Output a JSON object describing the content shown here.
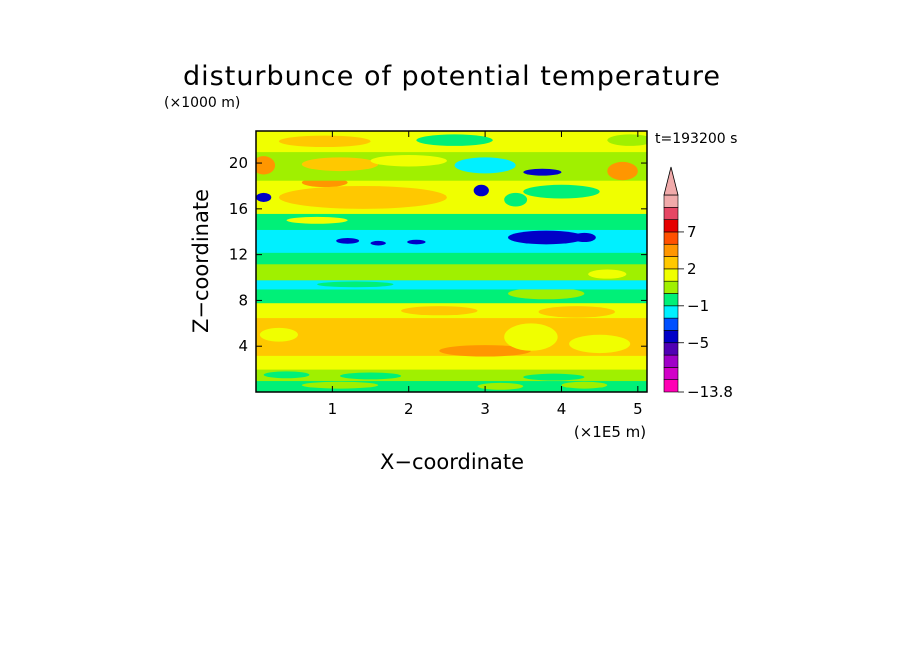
{
  "chart_data": {
    "type": "heatmap",
    "title": "disturbunce of potential temperature",
    "xlabel": "X−coordinate",
    "ylabel": "Z−coordinate",
    "x_unit": "(×1E5 m)",
    "y_unit": "(×1000 m)",
    "time_label": "t=193200 s",
    "xlim": [
      0,
      5.12
    ],
    "ylim": [
      0,
      22.8
    ],
    "x_ticks": [
      "1",
      "2",
      "3",
      "4",
      "5"
    ],
    "x_tick_values": [
      1,
      2,
      3,
      4,
      5
    ],
    "y_ticks": [
      "4",
      "8",
      "12",
      "16",
      "20"
    ],
    "y_tick_values": [
      4,
      8,
      12,
      16,
      20
    ],
    "colorbar": {
      "labels": [
        "7",
        "2",
        "−1",
        "−5",
        "−13.8"
      ],
      "label_values": [
        7,
        2,
        -1,
        -5,
        -13.8
      ],
      "min": -13.8,
      "colors": [
        "#ff00b4",
        "#d200c8",
        "#a000c8",
        "#5000b4",
        "#0000c8",
        "#0050ff",
        "#00f0ff",
        "#00f078",
        "#a0f000",
        "#f0ff00",
        "#ffc800",
        "#ff9600",
        "#ff5000",
        "#e60000",
        "#e64664",
        "#f0aaaa"
      ]
    },
    "bands": [
      {
        "z": [
          0,
          1.0
        ],
        "level": 7,
        "blobs": [
          {
            "x": 1.1,
            "z": 0.6,
            "rx": 0.5,
            "rz": 0.3,
            "level": 8
          },
          {
            "x": 3.2,
            "z": 0.5,
            "rx": 0.3,
            "rz": 0.3,
            "level": 8
          },
          {
            "x": 4.3,
            "z": 0.6,
            "rx": 0.3,
            "rz": 0.3,
            "level": 8
          }
        ]
      },
      {
        "z": [
          1.0,
          2.0
        ],
        "level": 8,
        "blobs": [
          {
            "x": 0.4,
            "z": 1.5,
            "rx": 0.3,
            "rz": 0.3,
            "level": 7
          },
          {
            "x": 1.5,
            "z": 1.4,
            "rx": 0.4,
            "rz": 0.3,
            "level": 7
          },
          {
            "x": 3.9,
            "z": 1.3,
            "rx": 0.4,
            "rz": 0.3,
            "level": 7
          }
        ]
      },
      {
        "z": [
          2.0,
          3.2
        ],
        "level": 9,
        "blobs": []
      },
      {
        "z": [
          3.2,
          6.5
        ],
        "level": 10,
        "blobs": [
          {
            "x": 0.3,
            "z": 5.0,
            "rx": 0.25,
            "rz": 0.6,
            "level": 9
          },
          {
            "x": 3.0,
            "z": 3.6,
            "rx": 0.6,
            "rz": 0.5,
            "level": 11
          },
          {
            "x": 3.6,
            "z": 4.8,
            "rx": 0.35,
            "rz": 1.2,
            "level": 9
          },
          {
            "x": 4.5,
            "z": 4.2,
            "rx": 0.4,
            "rz": 0.8,
            "level": 9
          }
        ]
      },
      {
        "z": [
          6.5,
          7.8
        ],
        "level": 9,
        "blobs": [
          {
            "x": 2.4,
            "z": 7.1,
            "rx": 0.5,
            "rz": 0.4,
            "level": 10
          },
          {
            "x": 4.2,
            "z": 7.0,
            "rx": 0.5,
            "rz": 0.5,
            "level": 10
          }
        ]
      },
      {
        "z": [
          7.8,
          9.0
        ],
        "level": 7,
        "blobs": [
          {
            "x": 3.8,
            "z": 8.6,
            "rx": 0.5,
            "rz": 0.5,
            "level": 8
          }
        ]
      },
      {
        "z": [
          9.0,
          9.8
        ],
        "level": 6,
        "blobs": [
          {
            "x": 1.3,
            "z": 9.4,
            "rx": 0.5,
            "rz": 0.25,
            "level": 7
          }
        ]
      },
      {
        "z": [
          9.8,
          11.2
        ],
        "level": 8,
        "blobs": [
          {
            "x": 4.6,
            "z": 10.3,
            "rx": 0.25,
            "rz": 0.4,
            "level": 9
          }
        ]
      },
      {
        "z": [
          11.2,
          12.2
        ],
        "level": 7,
        "blobs": []
      },
      {
        "z": [
          12.2,
          14.2
        ],
        "level": 6,
        "blobs": [
          {
            "x": 1.2,
            "z": 13.2,
            "rx": 0.15,
            "rz": 0.25,
            "level": 4
          },
          {
            "x": 1.6,
            "z": 13.0,
            "rx": 0.1,
            "rz": 0.2,
            "level": 4
          },
          {
            "x": 2.1,
            "z": 13.1,
            "rx": 0.12,
            "rz": 0.2,
            "level": 4
          },
          {
            "x": 3.8,
            "z": 13.5,
            "rx": 0.5,
            "rz": 0.6,
            "level": 4
          },
          {
            "x": 4.3,
            "z": 13.5,
            "rx": 0.15,
            "rz": 0.4,
            "level": 4
          }
        ]
      },
      {
        "z": [
          14.2,
          15.6
        ],
        "level": 7,
        "blobs": [
          {
            "x": 0.8,
            "z": 15.0,
            "rx": 0.4,
            "rz": 0.3,
            "level": 9
          }
        ]
      },
      {
        "z": [
          15.6,
          18.5
        ],
        "level": 9,
        "blobs": [
          {
            "x": 1.4,
            "z": 17.0,
            "rx": 1.1,
            "rz": 1.0,
            "level": 10
          },
          {
            "x": 0.9,
            "z": 18.3,
            "rx": 0.3,
            "rz": 0.4,
            "level": 11
          },
          {
            "x": 0.1,
            "z": 17.0,
            "rx": 0.1,
            "rz": 0.4,
            "level": 4
          },
          {
            "x": 2.95,
            "z": 17.6,
            "rx": 0.1,
            "rz": 0.5,
            "level": 4
          },
          {
            "x": 3.4,
            "z": 16.8,
            "rx": 0.15,
            "rz": 0.6,
            "level": 7
          },
          {
            "x": 4.0,
            "z": 17.5,
            "rx": 0.5,
            "rz": 0.6,
            "level": 7
          }
        ]
      },
      {
        "z": [
          18.5,
          21.0
        ],
        "level": 8,
        "blobs": [
          {
            "x": 0.1,
            "z": 19.8,
            "rx": 0.15,
            "rz": 0.8,
            "level": 11
          },
          {
            "x": 1.1,
            "z": 19.9,
            "rx": 0.5,
            "rz": 0.6,
            "level": 10
          },
          {
            "x": 2.0,
            "z": 20.2,
            "rx": 0.5,
            "rz": 0.5,
            "level": 9
          },
          {
            "x": 3.0,
            "z": 19.8,
            "rx": 0.4,
            "rz": 0.7,
            "level": 6
          },
          {
            "x": 4.8,
            "z": 19.3,
            "rx": 0.2,
            "rz": 0.8,
            "level": 11
          },
          {
            "x": 3.75,
            "z": 19.2,
            "rx": 0.25,
            "rz": 0.3,
            "level": 4
          }
        ]
      },
      {
        "z": [
          21.0,
          22.8
        ],
        "level": 9,
        "blobs": [
          {
            "x": 0.9,
            "z": 21.9,
            "rx": 0.6,
            "rz": 0.5,
            "level": 10
          },
          {
            "x": 2.6,
            "z": 22.0,
            "rx": 0.5,
            "rz": 0.5,
            "level": 7
          },
          {
            "x": 4.9,
            "z": 22.0,
            "rx": 0.3,
            "rz": 0.5,
            "level": 8
          }
        ]
      }
    ]
  }
}
